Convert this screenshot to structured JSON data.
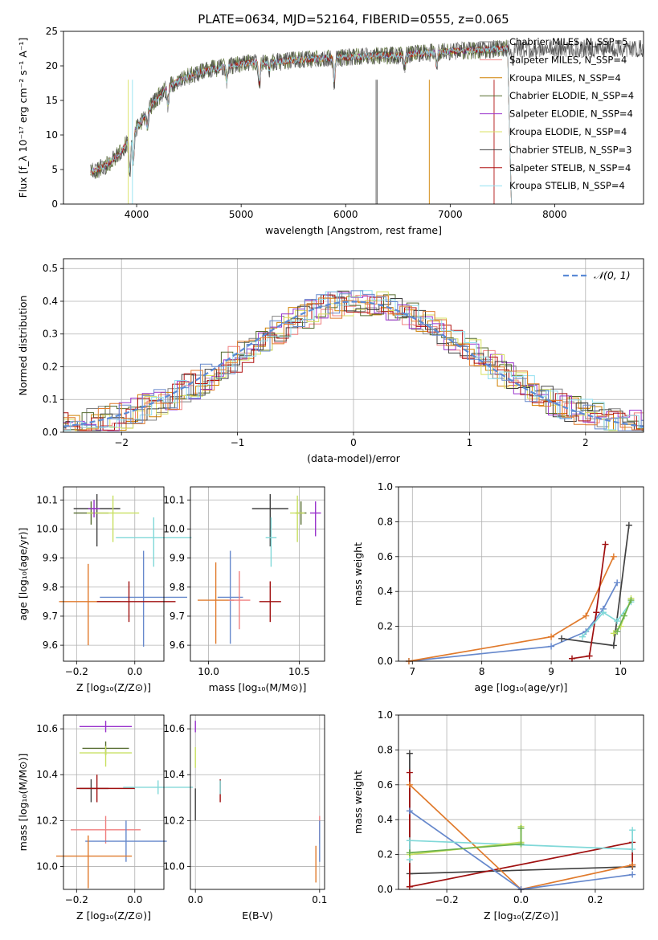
{
  "figure_title": "PLATE=0634, MJD=52164, FIBERID=0555, z=0.065",
  "series_colors": [
    "#808080",
    "#f08080",
    "#d08000",
    "#556b2f",
    "#9932cc",
    "#d8e060",
    "#404040",
    "#b01010",
    "#90e0f0"
  ],
  "fit_colors": [
    "#6688cc",
    "#e07a2c",
    "#404040",
    "#a01010",
    "#80d8d8",
    "#c8e060"
  ],
  "chart_data": [
    {
      "id": "spectrum",
      "type": "line",
      "title": "PLATE=0634, MJD=52164, FIBERID=0555, z=0.065",
      "xlabel": "wavelength [Angstrom, rest frame]",
      "ylabel": "Flux [f_λ 10⁻¹⁷ erg cm⁻² s⁻¹ A⁻¹]",
      "xlim": [
        3300,
        8850
      ],
      "ylim": [
        0,
        25
      ],
      "xticks": [
        4000,
        5000,
        6000,
        7000,
        8000
      ],
      "yticks": [
        0,
        5,
        10,
        15,
        20,
        25
      ],
      "legend_position": "right",
      "grid": false,
      "series": [
        {
          "name": "Chabrier MILES, N_SSP=5"
        },
        {
          "name": "Salpeter MILES, N_SSP=4"
        },
        {
          "name": "Kroupa MILES, N_SSP=4"
        },
        {
          "name": "Chabrier ELODIE, N_SSP=4"
        },
        {
          "name": "Salpeter ELODIE, N_SSP=4"
        },
        {
          "name": "Kroupa ELODIE, N_SSP=4"
        },
        {
          "name": "Chabrier STELIB, N_SSP=3"
        },
        {
          "name": "Salpeter STELIB, N_SSP=4"
        },
        {
          "name": "Kroupa STELIB, N_SSP=4"
        }
      ],
      "continuum": {
        "x": [
          3550,
          3700,
          3850,
          3950,
          4050,
          4150,
          4300,
          4500,
          4700,
          4900,
          5100,
          5300,
          5500,
          5700,
          5900,
          6100,
          6300,
          6500,
          6700,
          6900,
          7100,
          7300,
          7500
        ],
        "y": [
          4.5,
          5.5,
          7.5,
          10,
          12,
          14.5,
          17,
          18.5,
          19.5,
          20,
          20.5,
          20.5,
          20.8,
          21,
          21.2,
          21.3,
          21.5,
          21.5,
          21.8,
          22,
          22.2,
          22.3,
          22.5
        ]
      }
    },
    {
      "id": "residuals",
      "type": "histogram",
      "xlabel": "(data-model)/error",
      "ylabel": "Normed distribution",
      "xlim": [
        -2.5,
        2.5
      ],
      "ylim": [
        0,
        0.53
      ],
      "xticks": [
        -2,
        -1,
        0,
        1,
        2
      ],
      "yticks": [
        0.0,
        0.1,
        0.2,
        0.3,
        0.4,
        0.5
      ],
      "grid": true,
      "legend_position": "top-right",
      "reference_label": "𝒩(0, 1)",
      "bin_width": 0.1
    },
    {
      "id": "age_vs_Z",
      "type": "errorbar",
      "xlabel": "Z [log₁₀(Z/Z⊙)]",
      "ylabel": "age  [log₁₀(age/yr)]",
      "xlim": [
        -0.245,
        0.1
      ],
      "ylim": [
        9.545,
        10.145
      ],
      "xticks": [
        -0.2,
        0.0
      ],
      "yticks": [
        9.6,
        9.7,
        9.8,
        9.9,
        10.0,
        10.1
      ],
      "grid": true,
      "points": [
        {
          "x": -0.13,
          "y": 10.07,
          "xerr": [
            0.08,
            0.08
          ],
          "yerr": [
            0.13,
            0.05
          ],
          "color": "#404040"
        },
        {
          "x": -0.15,
          "y": 10.055,
          "xerr": [
            0.06,
            0.06
          ],
          "yerr": [
            0.04,
            0.04
          ],
          "color": "#556b2f"
        },
        {
          "x": -0.075,
          "y": 10.055,
          "xerr": [
            0.09,
            0.09
          ],
          "yerr": [
            0.1,
            0.06
          ],
          "color": "#c8e060"
        },
        {
          "x": -0.14,
          "y": 10.07,
          "xerr": [
            0.02,
            0.02
          ],
          "yerr": [
            0.03,
            0.03
          ],
          "color": "#9932cc"
        },
        {
          "x": 0.065,
          "y": 9.97,
          "xerr": [
            0.13,
            0.13
          ],
          "yerr": [
            0.1,
            0.07
          ],
          "color": "#80d8d8"
        },
        {
          "x": -0.16,
          "y": 9.75,
          "xerr": [
            0.1,
            0.11
          ],
          "yerr": [
            0.15,
            0.13
          ],
          "color": "#e07a2c"
        },
        {
          "x": 0.03,
          "y": 9.765,
          "xerr": [
            0.15,
            0.15
          ],
          "yerr": [
            0.17,
            0.16
          ],
          "color": "#6688cc"
        },
        {
          "x": -0.02,
          "y": 9.75,
          "xerr": [
            0.11,
            0.16
          ],
          "yerr": [
            0.07,
            0.07
          ],
          "color": "#a01010"
        }
      ]
    },
    {
      "id": "age_vs_mass",
      "type": "errorbar",
      "xlabel": "mass [log₁₀(M/M⊙)]",
      "ylabel": "",
      "xlim": [
        9.9,
        10.64
      ],
      "ylim": [
        9.545,
        10.145
      ],
      "xticks": [
        10.0,
        10.5
      ],
      "yticks": [
        9.6,
        9.7,
        9.8,
        9.9,
        10.0,
        10.1
      ],
      "grid": true,
      "points": [
        {
          "x": 10.34,
          "y": 10.07,
          "xerr": [
            0.1,
            0.1
          ],
          "yerr": [
            0.13,
            0.05
          ],
          "color": "#404040"
        },
        {
          "x": 10.51,
          "y": 10.055,
          "xerr": [
            0.03,
            0.03
          ],
          "yerr": [
            0.04,
            0.04
          ],
          "color": "#556b2f"
        },
        {
          "x": 10.49,
          "y": 10.055,
          "xerr": [
            0.04,
            0.04
          ],
          "yerr": [
            0.1,
            0.06
          ],
          "color": "#c8e060"
        },
        {
          "x": 10.59,
          "y": 10.055,
          "xerr": [
            0.03,
            0.03
          ],
          "yerr": [
            0.08,
            0.04
          ],
          "color": "#9932cc"
        },
        {
          "x": 10.345,
          "y": 9.97,
          "xerr": [
            0.03,
            0.03
          ],
          "yerr": [
            0.1,
            0.07
          ],
          "color": "#80d8d8"
        },
        {
          "x": 10.04,
          "y": 9.755,
          "xerr": [
            0.1,
            0.1
          ],
          "yerr": [
            0.15,
            0.13
          ],
          "color": "#e07a2c"
        },
        {
          "x": 10.12,
          "y": 9.765,
          "xerr": [
            0.07,
            0.07
          ],
          "yerr": [
            0.16,
            0.16
          ],
          "color": "#6688cc"
        },
        {
          "x": 10.17,
          "y": 9.755,
          "xerr": [
            0.06,
            0.06
          ],
          "yerr": [
            0.1,
            0.1
          ],
          "color": "#f08080"
        },
        {
          "x": 10.34,
          "y": 9.75,
          "xerr": [
            0.06,
            0.06
          ],
          "yerr": [
            0.07,
            0.07
          ],
          "color": "#a01010"
        }
      ]
    },
    {
      "id": "weight_vs_age",
      "type": "line",
      "xlabel": "age  [log₁₀(age/yr)]",
      "ylabel": "mass weight",
      "xlim": [
        6.8,
        10.33
      ],
      "ylim": [
        0,
        1.0
      ],
      "xticks": [
        7,
        8,
        9,
        10
      ],
      "yticks": [
        0.0,
        0.2,
        0.4,
        0.6,
        0.8,
        1.0
      ],
      "grid": true,
      "series": [
        {
          "color": "#6688cc",
          "x": [
            6.95,
            9.0,
            9.5,
            9.75,
            9.95
          ],
          "y": [
            0.0,
            0.085,
            0.17,
            0.3,
            0.45
          ]
        },
        {
          "color": "#e07a2c",
          "x": [
            6.95,
            9.0,
            9.5,
            9.9
          ],
          "y": [
            0.0,
            0.14,
            0.26,
            0.6
          ]
        },
        {
          "color": "#404040",
          "x": [
            9.15,
            9.9,
            10.12
          ],
          "y": [
            0.13,
            0.09,
            0.78
          ]
        },
        {
          "color": "#a01010",
          "x": [
            9.3,
            9.55,
            9.65,
            9.78
          ],
          "y": [
            0.015,
            0.03,
            0.28,
            0.67
          ]
        },
        {
          "color": "#80d8d8",
          "x": [
            9.45,
            9.75,
            9.95,
            10.15
          ],
          "y": [
            0.14,
            0.28,
            0.23,
            0.34
          ]
        },
        {
          "color": "#c8e060",
          "x": [
            9.9,
            10.0,
            10.15
          ],
          "y": [
            0.16,
            0.2,
            0.36
          ]
        },
        {
          "color": "#6ab04c",
          "x": [
            9.95,
            10.05,
            10.15
          ],
          "y": [
            0.17,
            0.26,
            0.35
          ]
        }
      ]
    },
    {
      "id": "mass_vs_Z",
      "type": "errorbar",
      "xlabel": "Z [log₁₀(Z/Z⊙)]",
      "ylabel": "mass [log₁₀(M/M⊙)]",
      "xlim": [
        -0.245,
        0.1
      ],
      "ylim": [
        9.9,
        10.66
      ],
      "xticks": [
        -0.2,
        0.0
      ],
      "yticks": [
        10.0,
        10.2,
        10.4,
        10.6
      ],
      "grid": true,
      "points": [
        {
          "x": -0.1,
          "y": 10.61,
          "xerr": [
            0.09,
            0.09
          ],
          "yerr": [
            0.025,
            0.025
          ],
          "color": "#9932cc"
        },
        {
          "x": -0.1,
          "y": 10.515,
          "xerr": [
            0.08,
            0.08
          ],
          "yerr": [
            0.03,
            0.03
          ],
          "color": "#556b2f"
        },
        {
          "x": -0.1,
          "y": 10.495,
          "xerr": [
            0.09,
            0.09
          ],
          "yerr": [
            0.06,
            0.03
          ],
          "color": "#c8e060"
        },
        {
          "x": -0.15,
          "y": 10.34,
          "xerr": [
            0.04,
            0.06
          ],
          "yerr": [
            0.06,
            0.04
          ],
          "color": "#404040"
        },
        {
          "x": -0.13,
          "y": 10.34,
          "xerr": [
            0.07,
            0.13
          ],
          "yerr": [
            0.06,
            0.06
          ],
          "color": "#a01010"
        },
        {
          "x": 0.08,
          "y": 10.345,
          "xerr": [
            0.12,
            0.12
          ],
          "yerr": [
            0.03,
            0.03
          ],
          "color": "#80d8d8"
        },
        {
          "x": -0.1,
          "y": 10.16,
          "xerr": [
            0.12,
            0.12
          ],
          "yerr": [
            0.06,
            0.06
          ],
          "color": "#f08080"
        },
        {
          "x": -0.03,
          "y": 10.11,
          "xerr": [
            0.14,
            0.14
          ],
          "yerr": [
            0.09,
            0.09
          ],
          "color": "#6688cc"
        },
        {
          "x": -0.16,
          "y": 10.045,
          "xerr": [
            0.11,
            0.15
          ],
          "yerr": [
            0.14,
            0.09
          ],
          "color": "#e07a2c"
        }
      ]
    },
    {
      "id": "mass_vs_EBV",
      "type": "errorbar",
      "xlabel": "E(B-V)",
      "ylabel": "",
      "xlim": [
        -0.004,
        0.104
      ],
      "ylim": [
        9.9,
        10.66
      ],
      "xticks": [
        0.0,
        0.1
      ],
      "yticks": [
        10.0,
        10.2,
        10.4,
        10.6
      ],
      "grid": true,
      "points": [
        {
          "x": 0.0,
          "y": 10.61,
          "xerr": [
            0,
            0
          ],
          "yerr": [
            0.025,
            0.025
          ],
          "color": "#9932cc"
        },
        {
          "x": 0.0,
          "y": 10.49,
          "xerr": [
            0,
            0
          ],
          "yerr": [
            0.06,
            0.03
          ],
          "color": "#c8e060"
        },
        {
          "x": 0.0,
          "y": 10.29,
          "xerr": [
            0,
            0
          ],
          "yerr": [
            0.09,
            0.05
          ],
          "color": "#404040"
        },
        {
          "x": 0.02,
          "y": 10.34,
          "xerr": [
            0,
            0
          ],
          "yerr": [
            0.06,
            0.04
          ],
          "color": "#a01010"
        },
        {
          "x": 0.02,
          "y": 10.345,
          "xerr": [
            0,
            0
          ],
          "yerr": [
            0.03,
            0.03
          ],
          "color": "#80d8d8"
        },
        {
          "x": 0.1,
          "y": 10.16,
          "xerr": [
            0,
            0
          ],
          "yerr": [
            0.06,
            0.06
          ],
          "color": "#f08080"
        },
        {
          "x": 0.1,
          "y": 10.11,
          "xerr": [
            0,
            0
          ],
          "yerr": [
            0.09,
            0.09
          ],
          "color": "#6688cc"
        },
        {
          "x": 0.097,
          "y": 10.0,
          "xerr": [
            0,
            0
          ],
          "yerr": [
            0.07,
            0.09
          ],
          "color": "#e07a2c"
        }
      ]
    },
    {
      "id": "weight_vs_Z",
      "type": "line",
      "xlabel": "Z [log₁₀(Z/Z⊙)]",
      "ylabel": "mass weight",
      "xlim": [
        -0.33,
        0.33
      ],
      "ylim": [
        0,
        1.0
      ],
      "xticks": [
        -0.2,
        0.0,
        0.2
      ],
      "yticks": [
        0.0,
        0.2,
        0.4,
        0.6,
        0.8,
        1.0
      ],
      "grid": true,
      "series": [
        {
          "color": "#404040",
          "x": [
            -0.3,
            -0.3,
            0.3
          ],
          "y": [
            0.78,
            0.09,
            0.13
          ]
        },
        {
          "color": "#a01010",
          "x": [
            -0.3,
            -0.3,
            0.3,
            0.3
          ],
          "y": [
            0.67,
            0.015,
            0.27,
            0.14
          ]
        },
        {
          "color": "#e07a2c",
          "x": [
            -0.3,
            0.0,
            0.3
          ],
          "y": [
            0.6,
            0.0,
            0.14
          ]
        },
        {
          "color": "#6688cc",
          "x": [
            -0.3,
            0.0,
            0.3
          ],
          "y": [
            0.45,
            0.0,
            0.085
          ]
        },
        {
          "color": "#80d8d8",
          "x": [
            -0.3,
            -0.3,
            0.3,
            0.3
          ],
          "y": [
            0.17,
            0.28,
            0.23,
            0.34
          ]
        },
        {
          "color": "#c8e060",
          "x": [
            -0.3,
            0.0,
            0.0
          ],
          "y": [
            0.2,
            0.27,
            0.36
          ]
        },
        {
          "color": "#6ab04c",
          "x": [
            -0.3,
            0.0,
            0.0
          ],
          "y": [
            0.21,
            0.26,
            0.35
          ]
        }
      ]
    }
  ]
}
